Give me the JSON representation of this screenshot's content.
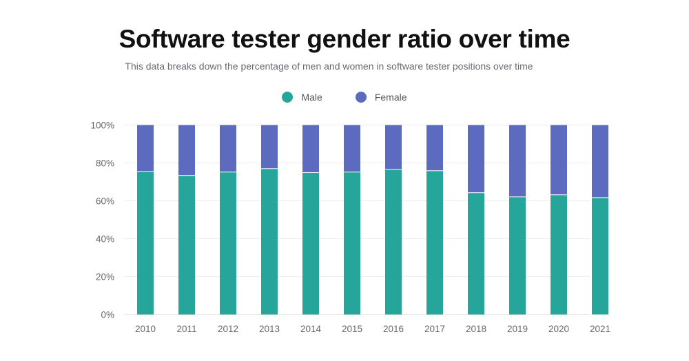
{
  "chart_data": {
    "type": "bar",
    "stacked": true,
    "title": "Software tester gender ratio over time",
    "subtitle": "This data breaks down the percentage of men and women in software tester positions over time",
    "categories": [
      "2010",
      "2011",
      "2012",
      "2013",
      "2014",
      "2015",
      "2016",
      "2017",
      "2018",
      "2019",
      "2020",
      "2021"
    ],
    "series": [
      {
        "name": "Male",
        "color": "#26a69a",
        "values": [
          75.3,
          73.2,
          75.0,
          76.8,
          74.7,
          75.0,
          76.4,
          75.7,
          64.1,
          61.9,
          63.0,
          61.5
        ]
      },
      {
        "name": "Female",
        "color": "#5c6bc0",
        "values": [
          24.7,
          26.8,
          25.0,
          23.2,
          25.3,
          25.0,
          23.6,
          24.3,
          35.9,
          38.1,
          37.0,
          38.5
        ]
      }
    ],
    "y_ticks": [
      "0%",
      "20%",
      "40%",
      "60%",
      "80%",
      "100%"
    ],
    "ylim": [
      0,
      100
    ],
    "grid": true,
    "legend_position": "top"
  }
}
